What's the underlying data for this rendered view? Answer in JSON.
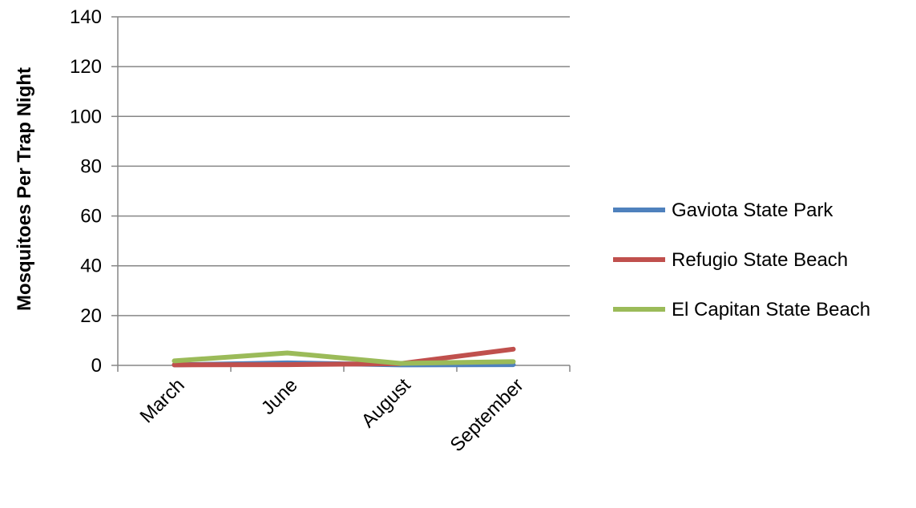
{
  "chart_data": {
    "type": "line",
    "title": "",
    "xlabel": "",
    "ylabel": "Mosquitoes Per Trap Night",
    "categories": [
      "March",
      "June",
      "August",
      "September"
    ],
    "ylim": [
      0,
      140
    ],
    "yticks": [
      0,
      20,
      40,
      60,
      80,
      100,
      120,
      140
    ],
    "grid": "horizontal",
    "legend_position": "right",
    "series": [
      {
        "name": "Gaviota State Park",
        "color": "#4f81bd",
        "values": [
          0.2,
          1,
          0.2,
          0.3
        ]
      },
      {
        "name": "Refugio State Beach",
        "color": "#c0504d",
        "values": [
          0.2,
          0.3,
          0.7,
          6.5
        ]
      },
      {
        "name": "El Capitan State Beach",
        "color": "#9bbb59",
        "values": [
          1.8,
          5,
          0.8,
          1.5
        ]
      }
    ]
  }
}
